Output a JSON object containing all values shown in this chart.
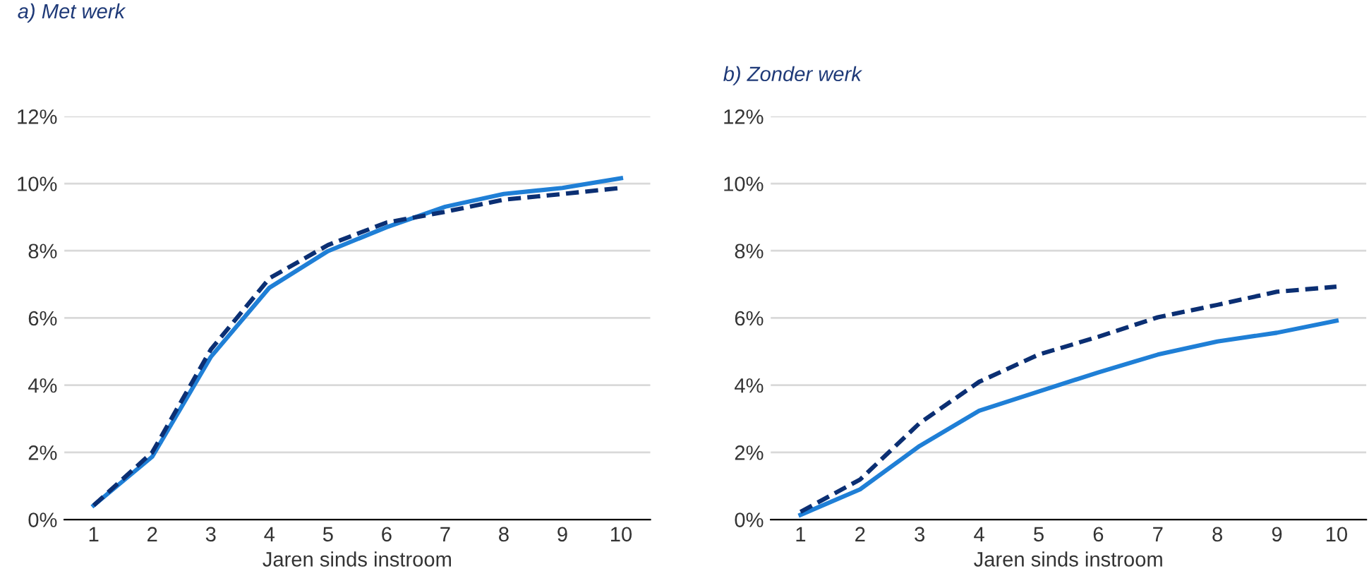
{
  "chart_data": [
    {
      "type": "line",
      "title": "a) Met werk",
      "xlabel": "Jaren sinds instroom",
      "categories": [
        "1",
        "2",
        "3",
        "4",
        "5",
        "6",
        "7",
        "8",
        "9",
        "10"
      ],
      "series": [
        {
          "color": "#1f7fd6",
          "line_style": "solid",
          "values": [
            0.42,
            1.87,
            4.84,
            6.9,
            7.99,
            8.7,
            9.31,
            9.69,
            9.87,
            10.16
          ]
        },
        {
          "color": "#0b2f73",
          "line_style": "dashed",
          "values": [
            0.42,
            2.0,
            5.06,
            7.18,
            8.17,
            8.84,
            9.16,
            9.52,
            9.69,
            9.87
          ]
        }
      ],
      "ylim": [
        0,
        12
      ],
      "yticks": [
        {
          "value": 0,
          "label": "0%"
        },
        {
          "value": 2,
          "label": "2%"
        },
        {
          "value": 4,
          "label": "4%"
        },
        {
          "value": 6,
          "label": "6%"
        },
        {
          "value": 8,
          "label": "8%"
        },
        {
          "value": 10,
          "label": "10%"
        },
        {
          "value": 12,
          "label": "12%"
        }
      ],
      "grid": "y",
      "legend": false
    },
    {
      "type": "line",
      "title": "b) Zonder werk",
      "xlabel": "Jaren sinds instroom",
      "categories": [
        "1",
        "2",
        "3",
        "4",
        "5",
        "6",
        "7",
        "8",
        "9",
        "10"
      ],
      "series": [
        {
          "color": "#1f7fd6",
          "line_style": "solid",
          "values": [
            0.14,
            0.9,
            2.19,
            3.24,
            3.81,
            4.38,
            4.91,
            5.3,
            5.56,
            5.92
          ]
        },
        {
          "color": "#0b2f73",
          "line_style": "dashed",
          "values": [
            0.23,
            1.19,
            2.87,
            4.1,
            4.91,
            5.44,
            6.02,
            6.39,
            6.78,
            6.93
          ]
        }
      ],
      "ylim": [
        0,
        12
      ],
      "yticks": [
        {
          "value": 0,
          "label": "0%"
        },
        {
          "value": 2,
          "label": "2%"
        },
        {
          "value": 4,
          "label": "4%"
        },
        {
          "value": 6,
          "label": "6%"
        },
        {
          "value": 8,
          "label": "8%"
        },
        {
          "value": 10,
          "label": "10%"
        },
        {
          "value": 12,
          "label": "12%"
        }
      ],
      "grid": "y",
      "legend": false
    }
  ]
}
